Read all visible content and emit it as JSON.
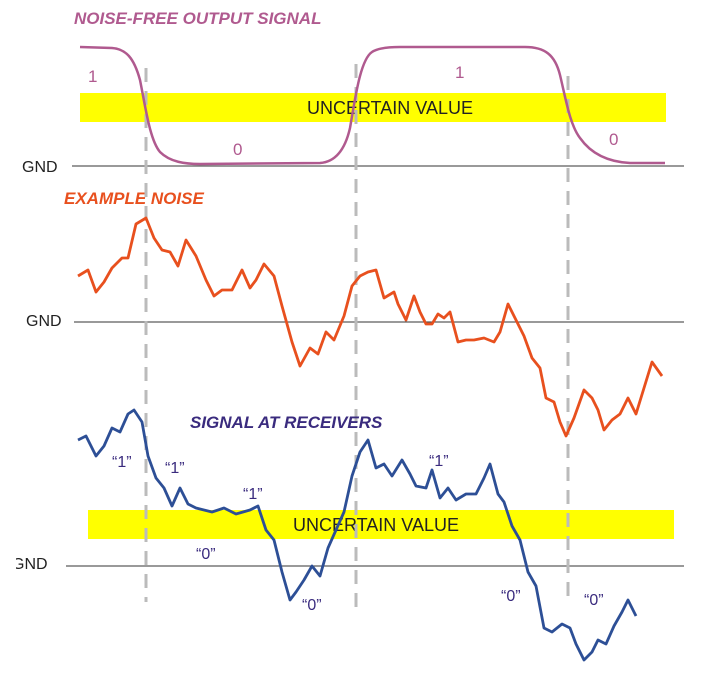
{
  "clean_panel": {
    "title": "NOISE-FREE OUTPUT SIGNAL",
    "gnd_label": "GND",
    "uncertain_label": "UNCERTAIN VALUE",
    "levels": [
      "1",
      "0",
      "1",
      "0"
    ],
    "color": "#b05a8f"
  },
  "noise_panel": {
    "title": "EXAMPLE NOISE",
    "gnd_label": "GND",
    "color": "#e8501e"
  },
  "receiver_panel": {
    "title": "SIGNAL AT RECEIVERS",
    "gnd_label": "GND",
    "uncertain_label": "UNCERTAIN VALUE",
    "labels": [
      "“1”",
      "“1”",
      "“1”",
      "“0”",
      "“0”",
      "“1”",
      "“0”",
      "“0”"
    ],
    "color": "#2d4f96",
    "label_color": "#3a2b7e"
  },
  "colors": {
    "band": "#ffff00",
    "gnd_line": "#333333",
    "dashed": "#bbbbbb"
  }
}
